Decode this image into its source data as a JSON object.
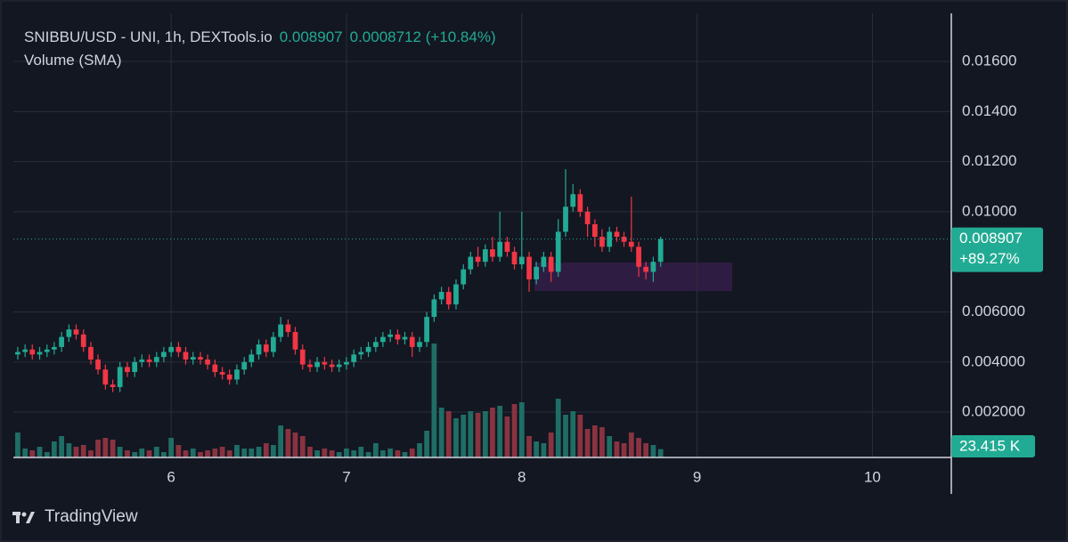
{
  "chart_data": {
    "type": "candlestick",
    "header_symbol": "SNIBBU/USD - UNI, 1h, DEXTools.io",
    "header_price": "0.008907",
    "header_change": "0.0008712 (+10.84%)",
    "volume_title": "Volume (SMA)",
    "brand": "TradingView",
    "x": [
      5.125,
      5.167,
      5.208,
      5.25,
      5.292,
      5.333,
      5.375,
      5.417,
      5.458,
      5.5,
      5.542,
      5.583,
      5.625,
      5.667,
      5.708,
      5.75,
      5.792,
      5.833,
      5.875,
      5.917,
      5.958,
      6,
      6.042,
      6.083,
      6.125,
      6.167,
      6.208,
      6.25,
      6.292,
      6.333,
      6.375,
      6.417,
      6.458,
      6.5,
      6.542,
      6.583,
      6.625,
      6.667,
      6.708,
      6.75,
      6.792,
      6.833,
      6.875,
      6.917,
      6.958,
      7,
      7.042,
      7.083,
      7.125,
      7.167,
      7.208,
      7.25,
      7.292,
      7.333,
      7.375,
      7.417,
      7.458,
      7.5,
      7.542,
      7.583,
      7.625,
      7.667,
      7.708,
      7.75,
      7.792,
      7.833,
      7.875,
      7.917,
      7.958,
      8,
      8.042,
      8.083,
      8.125,
      8.167,
      8.208,
      8.25,
      8.292,
      8.333,
      8.375,
      8.417,
      8.458,
      8.5,
      8.542,
      8.583,
      8.625,
      8.667,
      8.708,
      8.75,
      8.792
    ],
    "open": [
      0.0043,
      0.0044,
      0.0045,
      0.0043,
      0.0044,
      0.0045,
      0.0046,
      0.005,
      0.0053,
      0.0051,
      0.0046,
      0.0041,
      0.0037,
      0.0031,
      0.003,
      0.0038,
      0.0036,
      0.004,
      0.0041,
      0.004,
      0.0042,
      0.0044,
      0.0046,
      0.0044,
      0.0041,
      0.0042,
      0.0041,
      0.0039,
      0.0036,
      0.0035,
      0.0033,
      0.0037,
      0.004,
      0.0043,
      0.0047,
      0.0044,
      0.005,
      0.0055,
      0.0052,
      0.0045,
      0.0039,
      0.0038,
      0.004,
      0.0039,
      0.0038,
      0.0039,
      0.004,
      0.0043,
      0.0044,
      0.0046,
      0.0048,
      0.005,
      0.0051,
      0.0049,
      0.005,
      0.0046,
      0.0048,
      0.0058,
      0.0065,
      0.0068,
      0.0063,
      0.0071,
      0.0077,
      0.0082,
      0.008,
      0.0085,
      0.0082,
      0.0088,
      0.0084,
      0.0079,
      0.0082,
      0.0073,
      0.0078,
      0.0082,
      0.0076,
      0.0092,
      0.0102,
      0.0107,
      0.01,
      0.0095,
      0.009,
      0.0086,
      0.0092,
      0.009,
      0.0088,
      0.0086,
      0.0078,
      0.0076,
      0.008
    ],
    "high": [
      0.0046,
      0.0047,
      0.0047,
      0.0046,
      0.0047,
      0.0048,
      0.0052,
      0.0055,
      0.0055,
      0.0053,
      0.0048,
      0.0043,
      0.0039,
      0.0033,
      0.004,
      0.004,
      0.0042,
      0.0043,
      0.0043,
      0.0044,
      0.0046,
      0.0048,
      0.0048,
      0.0046,
      0.0044,
      0.0044,
      0.0043,
      0.0041,
      0.0038,
      0.0037,
      0.0039,
      0.0042,
      0.0045,
      0.0049,
      0.0049,
      0.0052,
      0.0058,
      0.0057,
      0.0054,
      0.0047,
      0.0041,
      0.0042,
      0.0042,
      0.0041,
      0.0041,
      0.0042,
      0.0045,
      0.0046,
      0.0048,
      0.005,
      0.0052,
      0.0053,
      0.0053,
      0.0052,
      0.0052,
      0.005,
      0.006,
      0.0067,
      0.007,
      0.007,
      0.0073,
      0.0079,
      0.0084,
      0.0086,
      0.0087,
      0.009,
      0.01,
      0.009,
      0.0086,
      0.01,
      0.0084,
      0.008,
      0.0084,
      0.0084,
      0.0097,
      0.0117,
      0.0111,
      0.0109,
      0.0102,
      0.0097,
      0.0093,
      0.0094,
      0.0094,
      0.0092,
      0.0106,
      0.0088,
      0.008,
      0.0082,
      0.009
    ],
    "low": [
      0.0041,
      0.0042,
      0.0041,
      0.0041,
      0.0042,
      0.0043,
      0.0044,
      0.0048,
      0.0049,
      0.0044,
      0.0039,
      0.0035,
      0.0029,
      0.0028,
      0.0028,
      0.0034,
      0.0034,
      0.0038,
      0.0038,
      0.0038,
      0.004,
      0.0042,
      0.0042,
      0.0039,
      0.0039,
      0.0039,
      0.0037,
      0.0034,
      0.0033,
      0.0031,
      0.0031,
      0.0035,
      0.0038,
      0.0041,
      0.0042,
      0.0042,
      0.0048,
      0.005,
      0.0043,
      0.0037,
      0.0036,
      0.0036,
      0.0037,
      0.0036,
      0.0036,
      0.0037,
      0.0038,
      0.0041,
      0.0042,
      0.0044,
      0.0046,
      0.0048,
      0.0047,
      0.0047,
      0.0042,
      0.0044,
      0.0046,
      0.0056,
      0.0063,
      0.0061,
      0.0061,
      0.0069,
      0.0075,
      0.0078,
      0.0078,
      0.008,
      0.008,
      0.0082,
      0.0077,
      0.0077,
      0.0068,
      0.0071,
      0.0076,
      0.0072,
      0.0074,
      0.009,
      0.01,
      0.0098,
      0.009,
      0.0086,
      0.0084,
      0.0084,
      0.0088,
      0.0086,
      0.0084,
      0.0074,
      0.0073,
      0.0072,
      0.0078
    ],
    "close": [
      0.0044,
      0.0045,
      0.0043,
      0.0044,
      0.0045,
      0.0046,
      0.005,
      0.0053,
      0.0051,
      0.0046,
      0.0041,
      0.0037,
      0.0031,
      0.003,
      0.0038,
      0.0036,
      0.004,
      0.0041,
      0.004,
      0.0042,
      0.0044,
      0.0046,
      0.0044,
      0.0041,
      0.0042,
      0.0041,
      0.0039,
      0.0036,
      0.0035,
      0.0033,
      0.0037,
      0.004,
      0.0043,
      0.0047,
      0.0044,
      0.005,
      0.0055,
      0.0052,
      0.0045,
      0.0039,
      0.0038,
      0.004,
      0.0039,
      0.0038,
      0.0039,
      0.004,
      0.0043,
      0.0044,
      0.0046,
      0.0048,
      0.005,
      0.0051,
      0.0049,
      0.005,
      0.0046,
      0.0048,
      0.0058,
      0.0065,
      0.0068,
      0.0063,
      0.0071,
      0.0077,
      0.0082,
      0.008,
      0.0085,
      0.0082,
      0.0088,
      0.0084,
      0.0079,
      0.0082,
      0.0073,
      0.0078,
      0.0082,
      0.0076,
      0.0092,
      0.0102,
      0.0107,
      0.01,
      0.0095,
      0.009,
      0.0086,
      0.0092,
      0.009,
      0.0088,
      0.0086,
      0.0078,
      0.0076,
      0.008,
      0.008907
    ],
    "volume": [
      70000,
      25000,
      20000,
      30000,
      15000,
      45000,
      60000,
      40000,
      30000,
      35000,
      20000,
      50000,
      55000,
      50000,
      30000,
      20000,
      15000,
      25000,
      20000,
      30000,
      15000,
      55000,
      35000,
      20000,
      25000,
      15000,
      20000,
      25000,
      30000,
      20000,
      35000,
      25000,
      25000,
      30000,
      40000,
      35000,
      90000,
      80000,
      70000,
      60000,
      30000,
      20000,
      25000,
      20000,
      15000,
      25000,
      20000,
      30000,
      15000,
      40000,
      20000,
      25000,
      20000,
      15000,
      25000,
      40000,
      75000,
      320000,
      140000,
      130000,
      110000,
      120000,
      130000,
      125000,
      130000,
      140000,
      145000,
      115000,
      150000,
      155000,
      60000,
      45000,
      40000,
      70000,
      165000,
      120000,
      130000,
      120000,
      80000,
      90000,
      85000,
      60000,
      45000,
      40000,
      70000,
      55000,
      40000,
      35000,
      23415
    ],
    "last_volume_label": "23.415 K",
    "last_price_label": "0.008907",
    "last_change_label": "+89.27%",
    "xlim": [
      5.1,
      10.45
    ],
    "xticks": [
      6,
      7,
      8,
      9,
      10
    ],
    "ylim": [
      0.00019,
      0.01792
    ],
    "yticks": [
      {
        "value": 0.002,
        "label": "0.002000"
      },
      {
        "value": 0.004,
        "label": "0.004000"
      },
      {
        "value": 0.006,
        "label": "0.006000"
      },
      {
        "value": 0.01,
        "label": "0.01000"
      },
      {
        "value": 0.012,
        "label": "0.01200"
      },
      {
        "value": 0.014,
        "label": "0.01400"
      },
      {
        "value": 0.016,
        "label": "0.01600"
      }
    ],
    "volume_ylim": [
      0,
      500000
    ],
    "grid": true,
    "up_color": "#22ab94",
    "down_color": "#f23645",
    "volume_up_color": "#1f6e66",
    "volume_down_color": "#8a3340"
  }
}
